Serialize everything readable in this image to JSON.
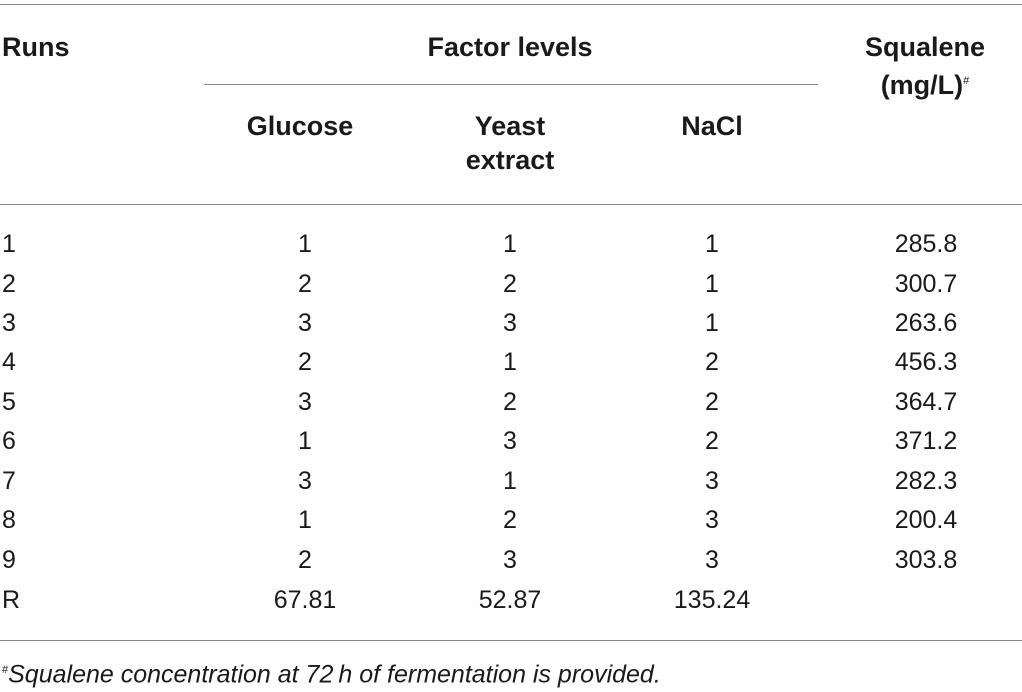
{
  "headers": {
    "runs": "Runs",
    "factor_levels": "Factor levels",
    "squalene_line1": "Squalene",
    "squalene_line2": "(mg/L)",
    "squalene_mark": "#",
    "glucose": "Glucose",
    "yeast_line1": "Yeast",
    "yeast_line2": "extract",
    "nacl": "NaCl"
  },
  "rows": [
    {
      "run": "1",
      "glucose": "1",
      "yeast": "1",
      "nacl": "1",
      "squalene": "285.8"
    },
    {
      "run": "2",
      "glucose": "2",
      "yeast": "2",
      "nacl": "1",
      "squalene": "300.7"
    },
    {
      "run": "3",
      "glucose": "3",
      "yeast": "3",
      "nacl": "1",
      "squalene": "263.6"
    },
    {
      "run": "4",
      "glucose": "2",
      "yeast": "1",
      "nacl": "2",
      "squalene": "456.3"
    },
    {
      "run": "5",
      "glucose": "3",
      "yeast": "2",
      "nacl": "2",
      "squalene": "364.7"
    },
    {
      "run": "6",
      "glucose": "1",
      "yeast": "3",
      "nacl": "2",
      "squalene": "371.2"
    },
    {
      "run": "7",
      "glucose": "3",
      "yeast": "1",
      "nacl": "3",
      "squalene": "282.3"
    },
    {
      "run": "8",
      "glucose": "1",
      "yeast": "2",
      "nacl": "3",
      "squalene": "200.4"
    },
    {
      "run": "9",
      "glucose": "2",
      "yeast": "3",
      "nacl": "3",
      "squalene": "303.8"
    },
    {
      "run": "R",
      "glucose": "67.81",
      "yeast": "52.87",
      "nacl": "135.24",
      "squalene": ""
    }
  ],
  "footnote": {
    "mark": "#",
    "text": "Squalene concentration at 72 h of fermentation is provided."
  }
}
